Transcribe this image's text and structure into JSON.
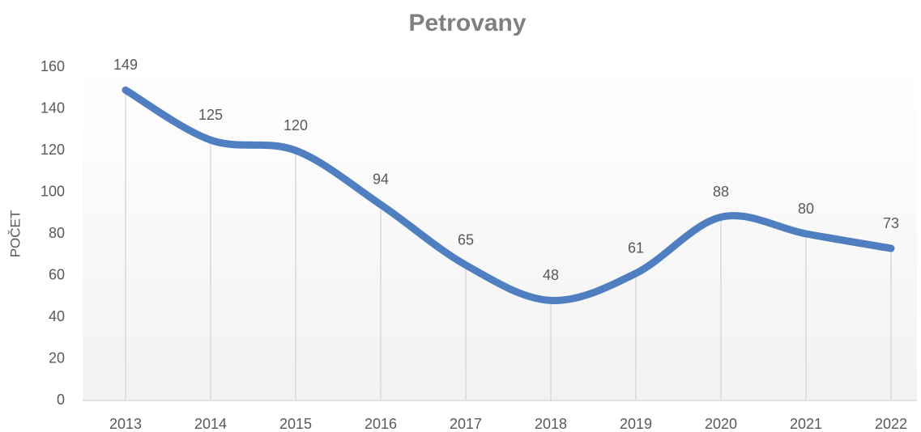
{
  "chart_data": {
    "type": "line",
    "title": "Petrovany",
    "y_label": "POČET",
    "categories": [
      "2013",
      "2014",
      "2015",
      "2016",
      "2017",
      "2018",
      "2019",
      "2020",
      "2021",
      "2022"
    ],
    "series": [
      {
        "name": "Petrovany",
        "color": "#4f7fc0",
        "values": [
          149,
          125,
          120,
          94,
          65,
          48,
          61,
          88,
          80,
          73
        ]
      }
    ],
    "ylim": [
      0,
      160
    ],
    "yticks": [
      0,
      20,
      40,
      60,
      80,
      100,
      120,
      140,
      160
    ],
    "smooth": true,
    "drop_lines": true,
    "data_labels": true
  }
}
